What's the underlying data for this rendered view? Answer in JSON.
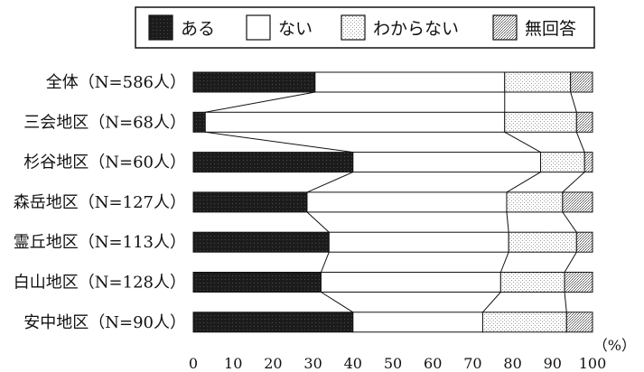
{
  "chart_data": {
    "type": "bar",
    "orientation": "horizontal",
    "stacked": true,
    "percent_stacked": true,
    "title": "",
    "xlabel": "",
    "ylabel": "",
    "unit_label": "（%）",
    "xlim": [
      0,
      100
    ],
    "x_ticks": [
      "0",
      "10",
      "20",
      "30",
      "40",
      "50",
      "60",
      "70",
      "80",
      "90",
      "100"
    ],
    "legend_position": "top",
    "grid": false,
    "connector_lines": true,
    "categories": [
      "全体（N=586人）",
      "三会地区（N=68人）",
      "杉谷地区（N=60人）",
      "森岳地区（N=127人）",
      "霊丘地区（N=113人）",
      "白山地区（N=128人）",
      "安中地区（N=90人）"
    ],
    "series": [
      {
        "name": "ある",
        "color": "#1a1a1a",
        "pattern": "solid-dark",
        "values": [
          30.5,
          3.0,
          40.0,
          28.5,
          34.0,
          32.0,
          40.0
        ]
      },
      {
        "name": "ない",
        "color": "#ffffff",
        "pattern": "blank",
        "values": [
          47.5,
          75.0,
          47.0,
          50.0,
          45.0,
          45.0,
          32.5
        ]
      },
      {
        "name": "わからない",
        "color": "#eeeeee",
        "pattern": "light-dots",
        "values": [
          16.5,
          18.0,
          11.0,
          14.0,
          17.0,
          16.0,
          21.0
        ]
      },
      {
        "name": "無回答",
        "color": "#cccccc",
        "pattern": "dense-dots",
        "values": [
          5.5,
          4.0,
          2.0,
          7.5,
          4.0,
          7.0,
          6.5
        ]
      }
    ]
  }
}
